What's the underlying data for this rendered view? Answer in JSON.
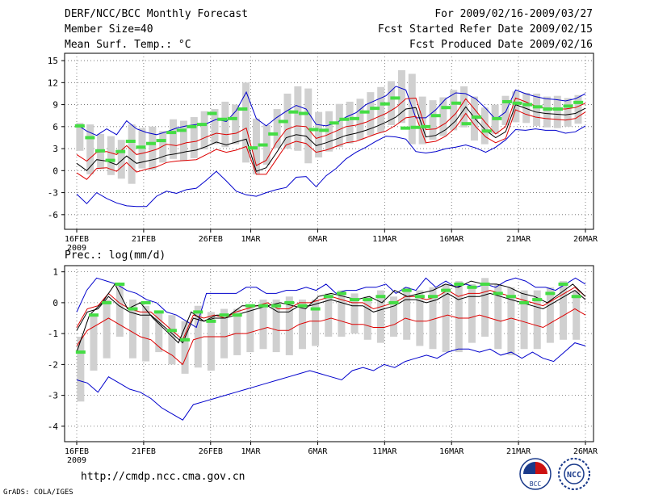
{
  "header": {
    "title": "DERF/NCC/BCC Monthly Forecast",
    "member_size": "Member Size=40",
    "variable": "Mean Surf. Temp.: °C",
    "period": "For 2009/02/16-2009/03/27",
    "started": "Fcst Started Refer Date 2009/02/15",
    "produced": "Fcst Produced Date 2009/02/16"
  },
  "footer": {
    "url": "http://cmdp.ncc.cma.gov.cn",
    "credit": "GrADS: COLA/IGES",
    "logo1_text": "BCC",
    "logo2_text": "NCC"
  },
  "colors": {
    "max_min": "#0000cc",
    "spread": "#dd0000",
    "mean": "#000000",
    "obs": "#44dd44",
    "box": "#d0d0d0"
  },
  "chart_data": [
    {
      "type": "line",
      "title": "Mean Surf. Temp.: °C",
      "days": 38,
      "x_tick_labels": [
        "16FEB",
        "21FEB",
        "26FEB",
        "1MAR",
        "6MAR",
        "11MAR",
        "16MAR",
        "21MAR",
        "26MAR"
      ],
      "x_tick_days": [
        0,
        5,
        10,
        13,
        18,
        23,
        28,
        33,
        38
      ],
      "x_year_label": "2009",
      "ylim": [
        -8,
        16
      ],
      "yticks": [
        -6,
        -3,
        0,
        3,
        6,
        9,
        12,
        15
      ],
      "series": [
        {
          "name": "max",
          "values": [
            6.3,
            5.4,
            4.8,
            5.7,
            4.9,
            6.8,
            5.7,
            5.2,
            4.9,
            5.3,
            5.8,
            6.1,
            6.3,
            6.4,
            7.0,
            6.7,
            8.2,
            10.7,
            7.1,
            6.1,
            7.2,
            8.1,
            8.9,
            8.4,
            6.3,
            6.1,
            6.5,
            7.3,
            7.9,
            9.0,
            9.6,
            10.2,
            11.5,
            11.0,
            7.2,
            7.2,
            8.3,
            9.8,
            10.6,
            10.5,
            9.8,
            8.5,
            7.0,
            8.0,
            11.0,
            10.5,
            10.1,
            9.8,
            9.7,
            9.5,
            9.8,
            10.5
          ]
        },
        {
          "name": "upper",
          "values": [
            2.2,
            1.3,
            2.5,
            2.6,
            2.2,
            3.4,
            2.2,
            2.5,
            2.9,
            3.6,
            3.4,
            3.8,
            4.0,
            4.6,
            5.1,
            4.9,
            5.1,
            5.8,
            0.7,
            1.4,
            3.8,
            5.6,
            6.1,
            6.0,
            4.4,
            4.8,
            5.4,
            6.0,
            6.2,
            6.6,
            7.2,
            7.8,
            8.6,
            9.8,
            9.9,
            5.6,
            5.7,
            6.5,
            7.8,
            9.8,
            8.2,
            6.5,
            5.0,
            6.0,
            9.9,
            9.4,
            8.8,
            8.5,
            8.4,
            8.4,
            8.6,
            9.2
          ]
        },
        {
          "name": "mean",
          "values": [
            1.0,
            0.0,
            1.5,
            1.3,
            0.8,
            2.0,
            1.0,
            1.3,
            1.6,
            2.1,
            2.3,
            2.6,
            2.8,
            3.3,
            3.9,
            3.5,
            3.9,
            4.3,
            -0.1,
            0.4,
            2.4,
            4.5,
            4.9,
            4.7,
            3.4,
            3.8,
            4.3,
            4.8,
            5.1,
            5.5,
            6.0,
            6.6,
            7.3,
            8.4,
            8.6,
            4.6,
            4.8,
            5.6,
            6.8,
            8.7,
            7.0,
            5.5,
            4.5,
            5.3,
            9.0,
            8.5,
            8.0,
            7.8,
            7.7,
            7.6,
            7.8,
            8.5
          ]
        },
        {
          "name": "lower",
          "values": [
            -0.3,
            -1.2,
            0.3,
            0.4,
            -0.1,
            1.1,
            -0.2,
            0.2,
            0.5,
            1.1,
            1.3,
            1.4,
            1.5,
            2.2,
            2.9,
            2.5,
            2.8,
            3.3,
            -0.5,
            -0.5,
            1.5,
            3.5,
            4.0,
            3.7,
            2.5,
            2.8,
            3.3,
            3.8,
            4.0,
            4.5,
            5.0,
            5.4,
            6.2,
            7.2,
            7.4,
            3.8,
            4.0,
            4.7,
            5.9,
            7.8,
            6.0,
            4.6,
            3.8,
            4.4,
            8.3,
            7.7,
            7.3,
            7.1,
            7.0,
            6.9,
            7.1,
            8.0
          ]
        },
        {
          "name": "min",
          "values": [
            -3.2,
            -4.5,
            -3.0,
            -3.8,
            -4.4,
            -4.8,
            -4.9,
            -4.9,
            -3.5,
            -2.8,
            -3.1,
            -2.6,
            -2.4,
            -1.3,
            -0.1,
            -1.4,
            -2.8,
            -3.3,
            -3.5,
            -3.0,
            -2.6,
            -2.3,
            -0.9,
            -0.8,
            -2.2,
            -0.7,
            0.3,
            1.6,
            2.5,
            3.2,
            4.0,
            4.7,
            4.6,
            4.3,
            2.6,
            2.4,
            2.6,
            3.0,
            3.2,
            3.5,
            3.1,
            2.5,
            3.2,
            4.2,
            5.6,
            5.5,
            5.7,
            5.5,
            5.5,
            5.1,
            5.3,
            6.1
          ]
        }
      ],
      "obs_green": [
        6.1,
        4.5,
        2.7,
        1.4,
        2.6,
        4.0,
        3.2,
        3.7,
        4.1,
        5.2,
        5.5,
        6.0,
        6.3,
        7.8,
        7.0,
        7.1,
        8.4,
        3.1,
        3.5,
        5.0,
        6.7,
        8.0,
        7.8,
        5.6,
        5.5,
        6.5,
        7.0,
        7.1,
        8.0,
        8.5,
        9.1,
        9.9,
        5.8,
        5.9,
        6.0,
        7.5,
        8.6,
        9.2,
        6.4,
        7.3,
        5.4,
        7.1,
        9.4,
        9.2,
        9.0,
        8.7,
        8.4,
        8.4,
        8.8,
        9.3
      ],
      "box_top": [
        6.5,
        6.3,
        5.0,
        4.7,
        4.2,
        6.3,
        5.8,
        6.0,
        5.4,
        7.0,
        6.8,
        7.3,
        8.1,
        8.4,
        9.4,
        9.0,
        12.0,
        7.1,
        6.2,
        8.4,
        10.5,
        11.5,
        11.2,
        8.0,
        8.1,
        9.1,
        9.4,
        9.8,
        10.7,
        11.4,
        12.2,
        13.7,
        13.2,
        10.1,
        9.6,
        10.0,
        11.0,
        11.5,
        10.1,
        8.6,
        9.0,
        10.2,
        10.8,
        10.6,
        10.5,
        10.1,
        10.2,
        9.9,
        10.3
      ],
      "box_bottom": [
        2.7,
        -0.5,
        0.2,
        -0.6,
        -1.1,
        -1.8,
        0.3,
        0.1,
        1.1,
        1.6,
        1.3,
        1.7,
        2.9,
        3.6,
        3.2,
        3.6,
        1.1,
        -0.5,
        0.8,
        3.1,
        3.0,
        2.7,
        1.0,
        1.8,
        2.6,
        3.2,
        3.7,
        4.2,
        4.8,
        5.2,
        6.2,
        6.5,
        3.6,
        3.6,
        4.2,
        4.7,
        5.5,
        5.9,
        4.1,
        3.6,
        5.0,
        6.2,
        6.6,
        6.5,
        6.1,
        5.9,
        5.8,
        6.0,
        6.4
      ],
      "xlabel": "",
      "ylabel": ""
    },
    {
      "type": "line",
      "title": "Prec.: log(mm/d)",
      "days": 38,
      "x_tick_labels": [
        "16FEB",
        "21FEB",
        "26FEB",
        "1MAR",
        "6MAR",
        "11MAR",
        "16MAR",
        "21MAR",
        "26MAR"
      ],
      "x_tick_days": [
        0,
        5,
        10,
        13,
        18,
        23,
        28,
        33,
        38
      ],
      "x_year_label": "2009",
      "ylim": [
        -4.5,
        1.2
      ],
      "yticks": [
        -4,
        -3,
        -2,
        -1,
        0,
        1
      ],
      "series": [
        {
          "name": "max",
          "values": [
            -0.3,
            0.4,
            0.8,
            0.7,
            0.6,
            0.4,
            0.3,
            0.1,
            0.0,
            -0.3,
            -0.4,
            -0.6,
            -0.8,
            0.3,
            0.3,
            0.3,
            0.3,
            0.5,
            0.5,
            0.3,
            0.3,
            0.4,
            0.4,
            0.5,
            0.4,
            0.6,
            0.3,
            0.4,
            0.4,
            0.5,
            0.5,
            0.6,
            0.3,
            0.5,
            0.4,
            0.8,
            0.5,
            0.7,
            0.5,
            0.6,
            0.5,
            0.6,
            0.5,
            0.7,
            0.8,
            0.7,
            0.5,
            0.5,
            0.4,
            0.6,
            0.8,
            0.6
          ]
        },
        {
          "name": "upper",
          "values": [
            -0.8,
            -0.2,
            -0.1,
            0.3,
            0.0,
            -0.2,
            -0.3,
            -0.3,
            -0.6,
            -0.9,
            -1.2,
            -0.4,
            -0.5,
            -0.4,
            -0.5,
            -0.3,
            -0.2,
            -0.1,
            0.0,
            -0.2,
            -0.2,
            0.0,
            0.0,
            0.1,
            0.2,
            0.1,
            0.0,
            0.0,
            -0.2,
            -0.1,
            0.0,
            0.2,
            0.2,
            0.1,
            0.2,
            0.4,
            0.2,
            0.3,
            0.3,
            0.4,
            0.3,
            0.2,
            0.1,
            0.0,
            -0.1,
            0.1,
            0.3,
            0.5,
            0.2
          ]
        },
        {
          "name": "mean",
          "values": [
            -0.9,
            -0.3,
            -0.2,
            0.2,
            -0.1,
            -0.3,
            -0.4,
            -0.4,
            -0.7,
            -1.0,
            -1.3,
            -0.5,
            -0.6,
            -0.5,
            -0.5,
            -0.4,
            -0.3,
            -0.2,
            -0.1,
            -0.3,
            -0.3,
            -0.1,
            -0.1,
            0.0,
            0.1,
            0.0,
            -0.1,
            -0.1,
            -0.3,
            -0.2,
            -0.1,
            0.1,
            0.1,
            0.0,
            0.1,
            0.3,
            0.1,
            0.2,
            0.2,
            0.3,
            0.2,
            0.1,
            0.0,
            -0.1,
            -0.2,
            0.0,
            0.2,
            0.4,
            0.1
          ]
        },
        {
          "name": "lower",
          "values": [
            -1.4,
            -0.9,
            -0.7,
            -0.5,
            -0.7,
            -0.9,
            -1.1,
            -1.2,
            -1.5,
            -1.7,
            -2.0,
            -1.2,
            -1.1,
            -1.1,
            -1.1,
            -1.0,
            -1.0,
            -0.9,
            -0.8,
            -0.9,
            -0.9,
            -0.7,
            -0.6,
            -0.6,
            -0.5,
            -0.6,
            -0.7,
            -0.7,
            -0.8,
            -0.8,
            -0.7,
            -0.5,
            -0.6,
            -0.6,
            -0.5,
            -0.4,
            -0.5,
            -0.5,
            -0.4,
            -0.5,
            -0.6,
            -0.5,
            -0.6,
            -0.7,
            -0.8,
            -0.6,
            -0.4,
            -0.2,
            -0.4
          ]
        },
        {
          "name": "min",
          "values": [
            -2.5,
            -2.6,
            -2.9,
            -2.4,
            -2.6,
            -2.8,
            -2.9,
            -3.1,
            -3.4,
            -3.6,
            -3.8,
            -3.3,
            -3.2,
            -3.1,
            -3.0,
            -2.9,
            -2.8,
            -2.7,
            -2.6,
            -2.5,
            -2.4,
            -2.3,
            -2.2,
            -2.3,
            -2.4,
            -2.5,
            -2.2,
            -2.1,
            -2.2,
            -2.0,
            -2.1,
            -1.9,
            -1.8,
            -1.7,
            -1.8,
            -1.6,
            -1.5,
            -1.5,
            -1.6,
            -1.5,
            -1.7,
            -1.6,
            -1.8,
            -1.6,
            -1.8,
            -1.9,
            -1.6,
            -1.3,
            -1.4
          ]
        },
        {
          "name": "obs",
          "values": [
            -1.6,
            -0.4,
            0.0,
            0.6,
            -0.2,
            0.0,
            -0.5,
            -0.9,
            -1.3,
            -0.3,
            -0.6,
            -0.4,
            -0.4,
            -0.1,
            -0.1,
            -0.1,
            0.0,
            -0.1,
            -0.2,
            0.2,
            0.3,
            0.2,
            0.1,
            0.2,
            0.0,
            0.4,
            0.2,
            0.3,
            0.4,
            0.6,
            0.5,
            0.7,
            0.6,
            0.6,
            0.5,
            0.3,
            0.2,
            0.0,
            0.3,
            0.6,
            0.2
          ]
        }
      ],
      "obs_green": [
        -1.6,
        -0.4,
        0.0,
        0.6,
        -0.2,
        0.0,
        -0.3,
        -0.9,
        -1.2,
        -0.3,
        -0.6,
        -0.4,
        -0.4,
        -0.1,
        -0.1,
        -0.1,
        0.0,
        -0.1,
        -0.2,
        0.2,
        0.3,
        0.1,
        0.1,
        0.2,
        0.0,
        0.4,
        0.2,
        0.2,
        0.4,
        0.6,
        0.5,
        0.6,
        0.3,
        0.2,
        0.0,
        0.1,
        0.3,
        0.6,
        0.2
      ],
      "box_top": [
        -1.1,
        -0.4,
        0.1,
        0.6,
        0.1,
        -0.1,
        -0.3,
        -0.4,
        -0.6,
        -0.1,
        -0.3,
        -0.2,
        -0.2,
        -0.1,
        0.1,
        0.1,
        0.2,
        0.1,
        0.1,
        0.3,
        0.4,
        0.3,
        0.2,
        0.4,
        0.2,
        0.5,
        0.4,
        0.5,
        0.6,
        0.7,
        0.6,
        0.8,
        0.6,
        0.5,
        0.4,
        0.4,
        0.5,
        0.7,
        0.4
      ],
      "box_bottom": [
        -3.2,
        -2.2,
        -1.8,
        -1.1,
        -1.8,
        -1.9,
        -1.6,
        -2.0,
        -2.3,
        -2.1,
        -2.2,
        -1.8,
        -1.7,
        -1.6,
        -1.5,
        -1.6,
        -1.7,
        -1.5,
        -1.4,
        -1.1,
        -1.1,
        -1.0,
        -1.2,
        -1.3,
        -1.1,
        -1.2,
        -1.4,
        -1.5,
        -1.6,
        -1.6,
        -1.3,
        -1.1,
        -1.5,
        -1.7,
        -1.5,
        -1.5,
        -1.3,
        -1.2,
        -1.2
      ],
      "xlabel": "",
      "ylabel": ""
    }
  ]
}
